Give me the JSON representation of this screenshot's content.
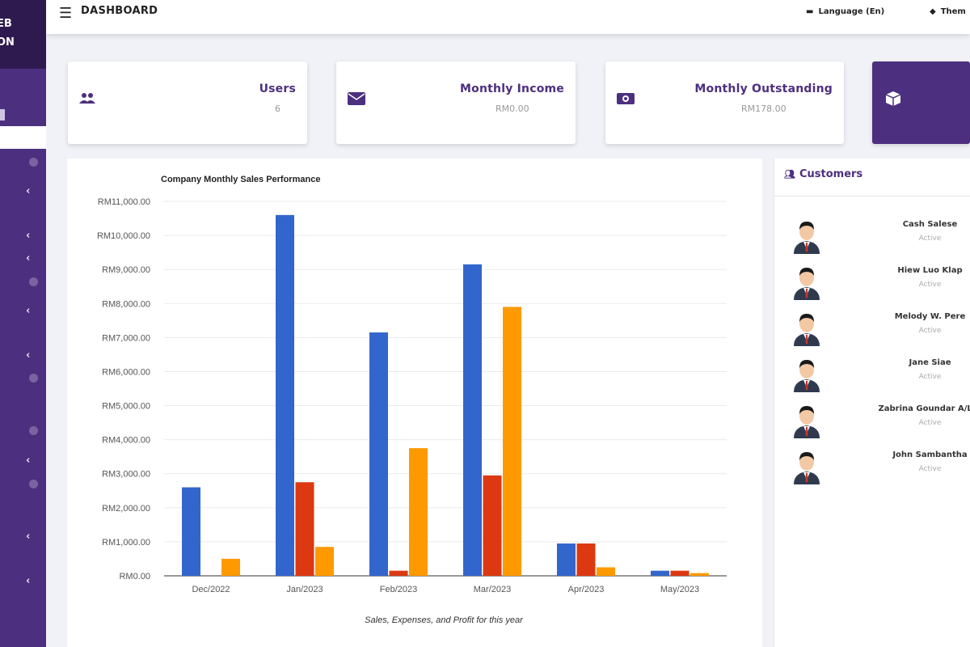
{
  "sidebar": {
    "brand_line1": "EB",
    "brand_line2": "ON"
  },
  "topbar": {
    "title": "DASHBOARD",
    "language": "Language (En)",
    "theme": "Them"
  },
  "cards": [
    {
      "title": "Users",
      "value": "6"
    },
    {
      "title": "Monthly Income",
      "value": "RM0.00"
    },
    {
      "title": "Monthly Outstanding",
      "value": "RM178.00"
    }
  ],
  "chart_data": {
    "type": "bar",
    "title": "Company Monthly Sales Performance",
    "xlabel": "Sales, Expenses, and Profit for this year",
    "categories": [
      "Dec/2022",
      "Jan/2023",
      "Feb/2023",
      "Mar/2023",
      "Apr/2023",
      "May/2023"
    ],
    "series": [
      {
        "color": "#3366cc",
        "values": [
          2600,
          10600,
          7150,
          9150,
          950,
          150
        ]
      },
      {
        "color": "#dc3912",
        "values": [
          0,
          2750,
          150,
          2950,
          950,
          150
        ]
      },
      {
        "color": "#ff9900",
        "values": [
          500,
          850,
          3750,
          7900,
          250,
          80
        ]
      }
    ],
    "yticks": [
      "RM0.00",
      "RM1,000.00",
      "RM2,000.00",
      "RM3,000.00",
      "RM4,000.00",
      "RM5,000.00",
      "RM6,000.00",
      "RM7,000.00",
      "RM8,000.00",
      "RM9,000.00",
      "RM10,000.00",
      "RM11,000.00"
    ],
    "ylim": [
      0,
      11000
    ],
    "grid": true,
    "legend": "none"
  },
  "customers": {
    "title": "Customers",
    "items": [
      {
        "name": "Cash Salese",
        "status": "Active"
      },
      {
        "name": "Hiew Luo Klap",
        "status": "Active"
      },
      {
        "name": "Melody W. Pere",
        "status": "Active"
      },
      {
        "name": "Jane Siae",
        "status": "Active"
      },
      {
        "name": "Zabrina Goundar A/L G",
        "status": "Active"
      },
      {
        "name": "John Sambantha",
        "status": "Active"
      }
    ]
  },
  "colors": {
    "brand": "#4d2f7f",
    "brand_dark": "#2f1a4f",
    "background": "#f1f2f7"
  },
  "icons": {
    "menu": "menu-icon",
    "language": "language-icon",
    "theme": "theme-icon",
    "users": "users-icon",
    "income": "envelope-icon",
    "outstanding": "money-icon",
    "cube": "cube-icon",
    "customers": "users-icon"
  }
}
